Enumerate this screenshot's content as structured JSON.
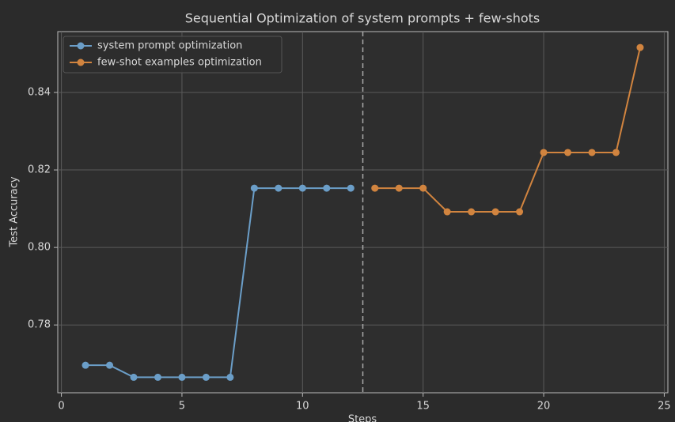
{
  "chart_data": {
    "type": "line",
    "title": "Sequential Optimization of system prompts + few-shots",
    "x_label": "Steps",
    "y_label": "Test Accuracy",
    "series": [
      {
        "name": "system prompt optimization",
        "color": "#6b9ec8",
        "x": [
          1,
          2,
          3,
          4,
          5,
          6,
          7,
          8,
          9,
          10,
          11,
          12
        ],
        "values": [
          0.7696,
          0.7696,
          0.7665,
          0.7665,
          0.7665,
          0.7665,
          0.7665,
          0.8153,
          0.8153,
          0.8153,
          0.8153,
          0.8153
        ]
      },
      {
        "name": "few-shot examples optimization",
        "color": "#d1843f",
        "x": [
          13,
          14,
          15,
          16,
          17,
          18,
          19,
          20,
          21,
          22,
          23,
          24
        ],
        "values": [
          0.8153,
          0.8153,
          0.8153,
          0.8092,
          0.8092,
          0.8092,
          0.8092,
          0.8245,
          0.8245,
          0.8245,
          0.8245,
          0.8516
        ]
      }
    ],
    "vline": 12.5,
    "xlim": [
      -0.15,
      25.15
    ],
    "xticks": [
      0,
      5,
      10,
      15,
      20,
      25
    ],
    "ylim": [
      0.7625,
      0.8557
    ],
    "yticks": [
      {
        "value": 0.78,
        "label": "0.78"
      },
      {
        "value": 0.8,
        "label": "0.80"
      },
      {
        "value": 0.82,
        "label": "0.82"
      },
      {
        "value": 0.84,
        "label": "0.84"
      }
    ],
    "grid": true,
    "legend": "upper left"
  }
}
